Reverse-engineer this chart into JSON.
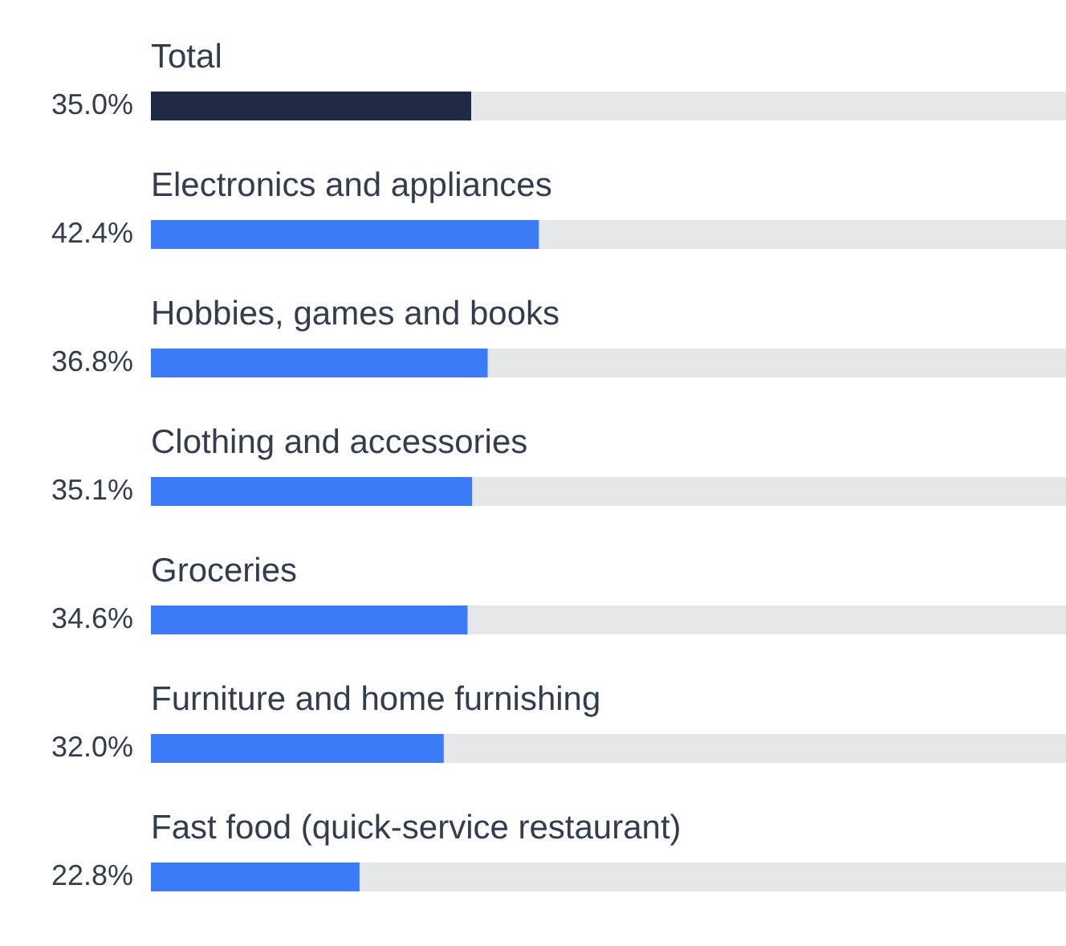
{
  "chart_data": {
    "type": "bar",
    "orientation": "horizontal",
    "categories": [
      "Total",
      "Electronics and appliances",
      "Hobbies, games and books",
      "Clothing and accessories",
      "Groceries",
      "Furniture and home furnishing",
      "Fast food (quick-service restaurant)"
    ],
    "values": [
      35.0,
      42.4,
      36.8,
      35.1,
      34.6,
      32.0,
      22.8
    ],
    "colors": [
      "#1f2a44",
      "#3b7cf6",
      "#3b7cf6",
      "#3b7cf6",
      "#3b7cf6",
      "#3b7cf6",
      "#3b7cf6"
    ],
    "value_labels": [
      "35.0%",
      "42.4%",
      "36.8%",
      "35.1%",
      "34.6%",
      "32.0%",
      "22.8%"
    ],
    "xlim": [
      0,
      100
    ]
  }
}
